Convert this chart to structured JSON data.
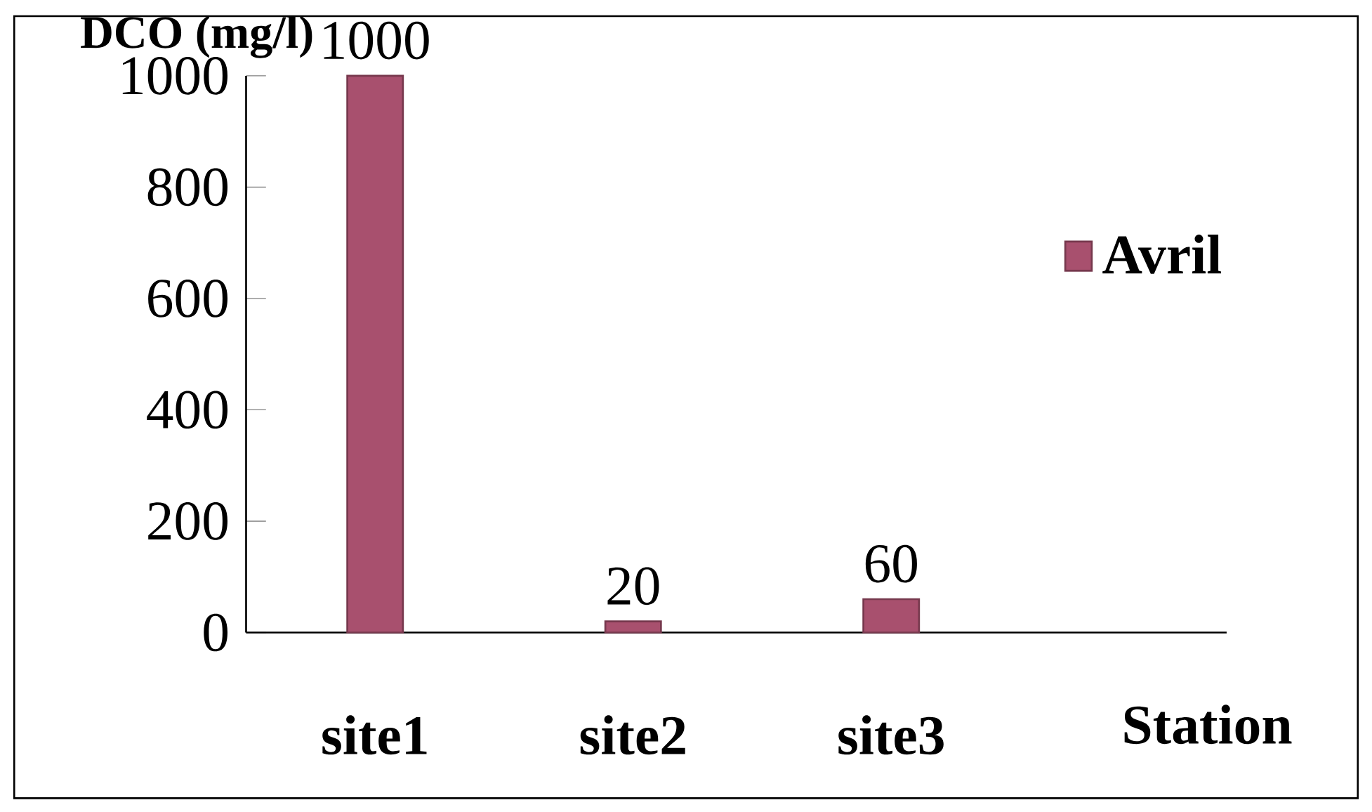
{
  "chart_data": {
    "type": "bar",
    "categories": [
      "site1",
      "site2",
      "site3"
    ],
    "series": [
      {
        "name": "Avril",
        "color": "#a8506e",
        "values": [
          1000,
          20,
          60
        ]
      }
    ],
    "ylabel": "DCO (mg/l)",
    "xlabel": "Station",
    "ylim": [
      0,
      1000
    ],
    "yticks": [
      0,
      200,
      400,
      600,
      800,
      1000
    ],
    "data_labels": true,
    "legend": "top right",
    "grid": false
  }
}
